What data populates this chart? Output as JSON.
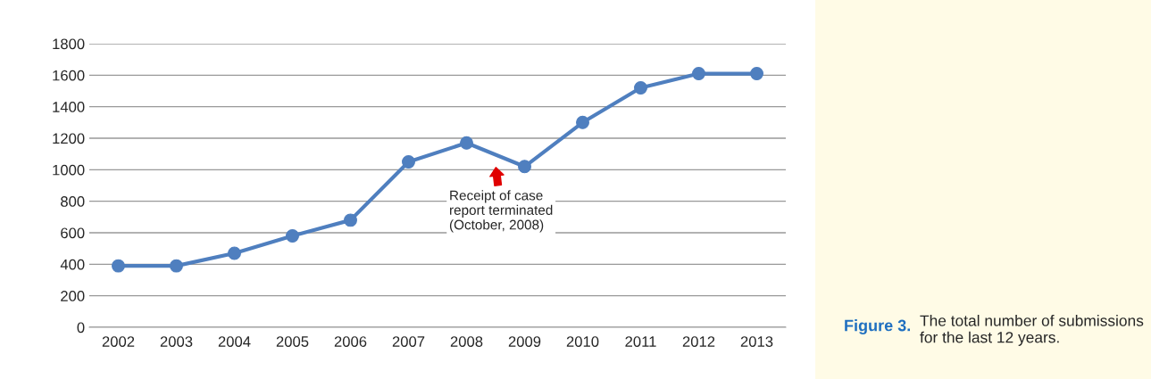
{
  "chart_data": {
    "type": "line",
    "categories": [
      "2002",
      "2003",
      "2004",
      "2005",
      "2006",
      "2007",
      "2008",
      "2009",
      "2010",
      "2011",
      "2012",
      "2013"
    ],
    "series": [
      {
        "color": "#4f7fbf",
        "values": [
          390,
          390,
          470,
          580,
          680,
          1050,
          1170,
          1020,
          1300,
          1520,
          1610,
          1610
        ]
      }
    ],
    "ylim": [
      0,
      1800
    ],
    "yticks": [
      0,
      200,
      400,
      600,
      800,
      1000,
      1200,
      1400,
      1600,
      1800
    ],
    "grid": "y",
    "marker": "circle",
    "line_style": "solid",
    "legend": false,
    "annotations": [
      "Receipt of case\nreport terminated\n(October, 2008)",
      "Figure 3.",
      "The total number of submissions for the last 12 years."
    ]
  }
}
